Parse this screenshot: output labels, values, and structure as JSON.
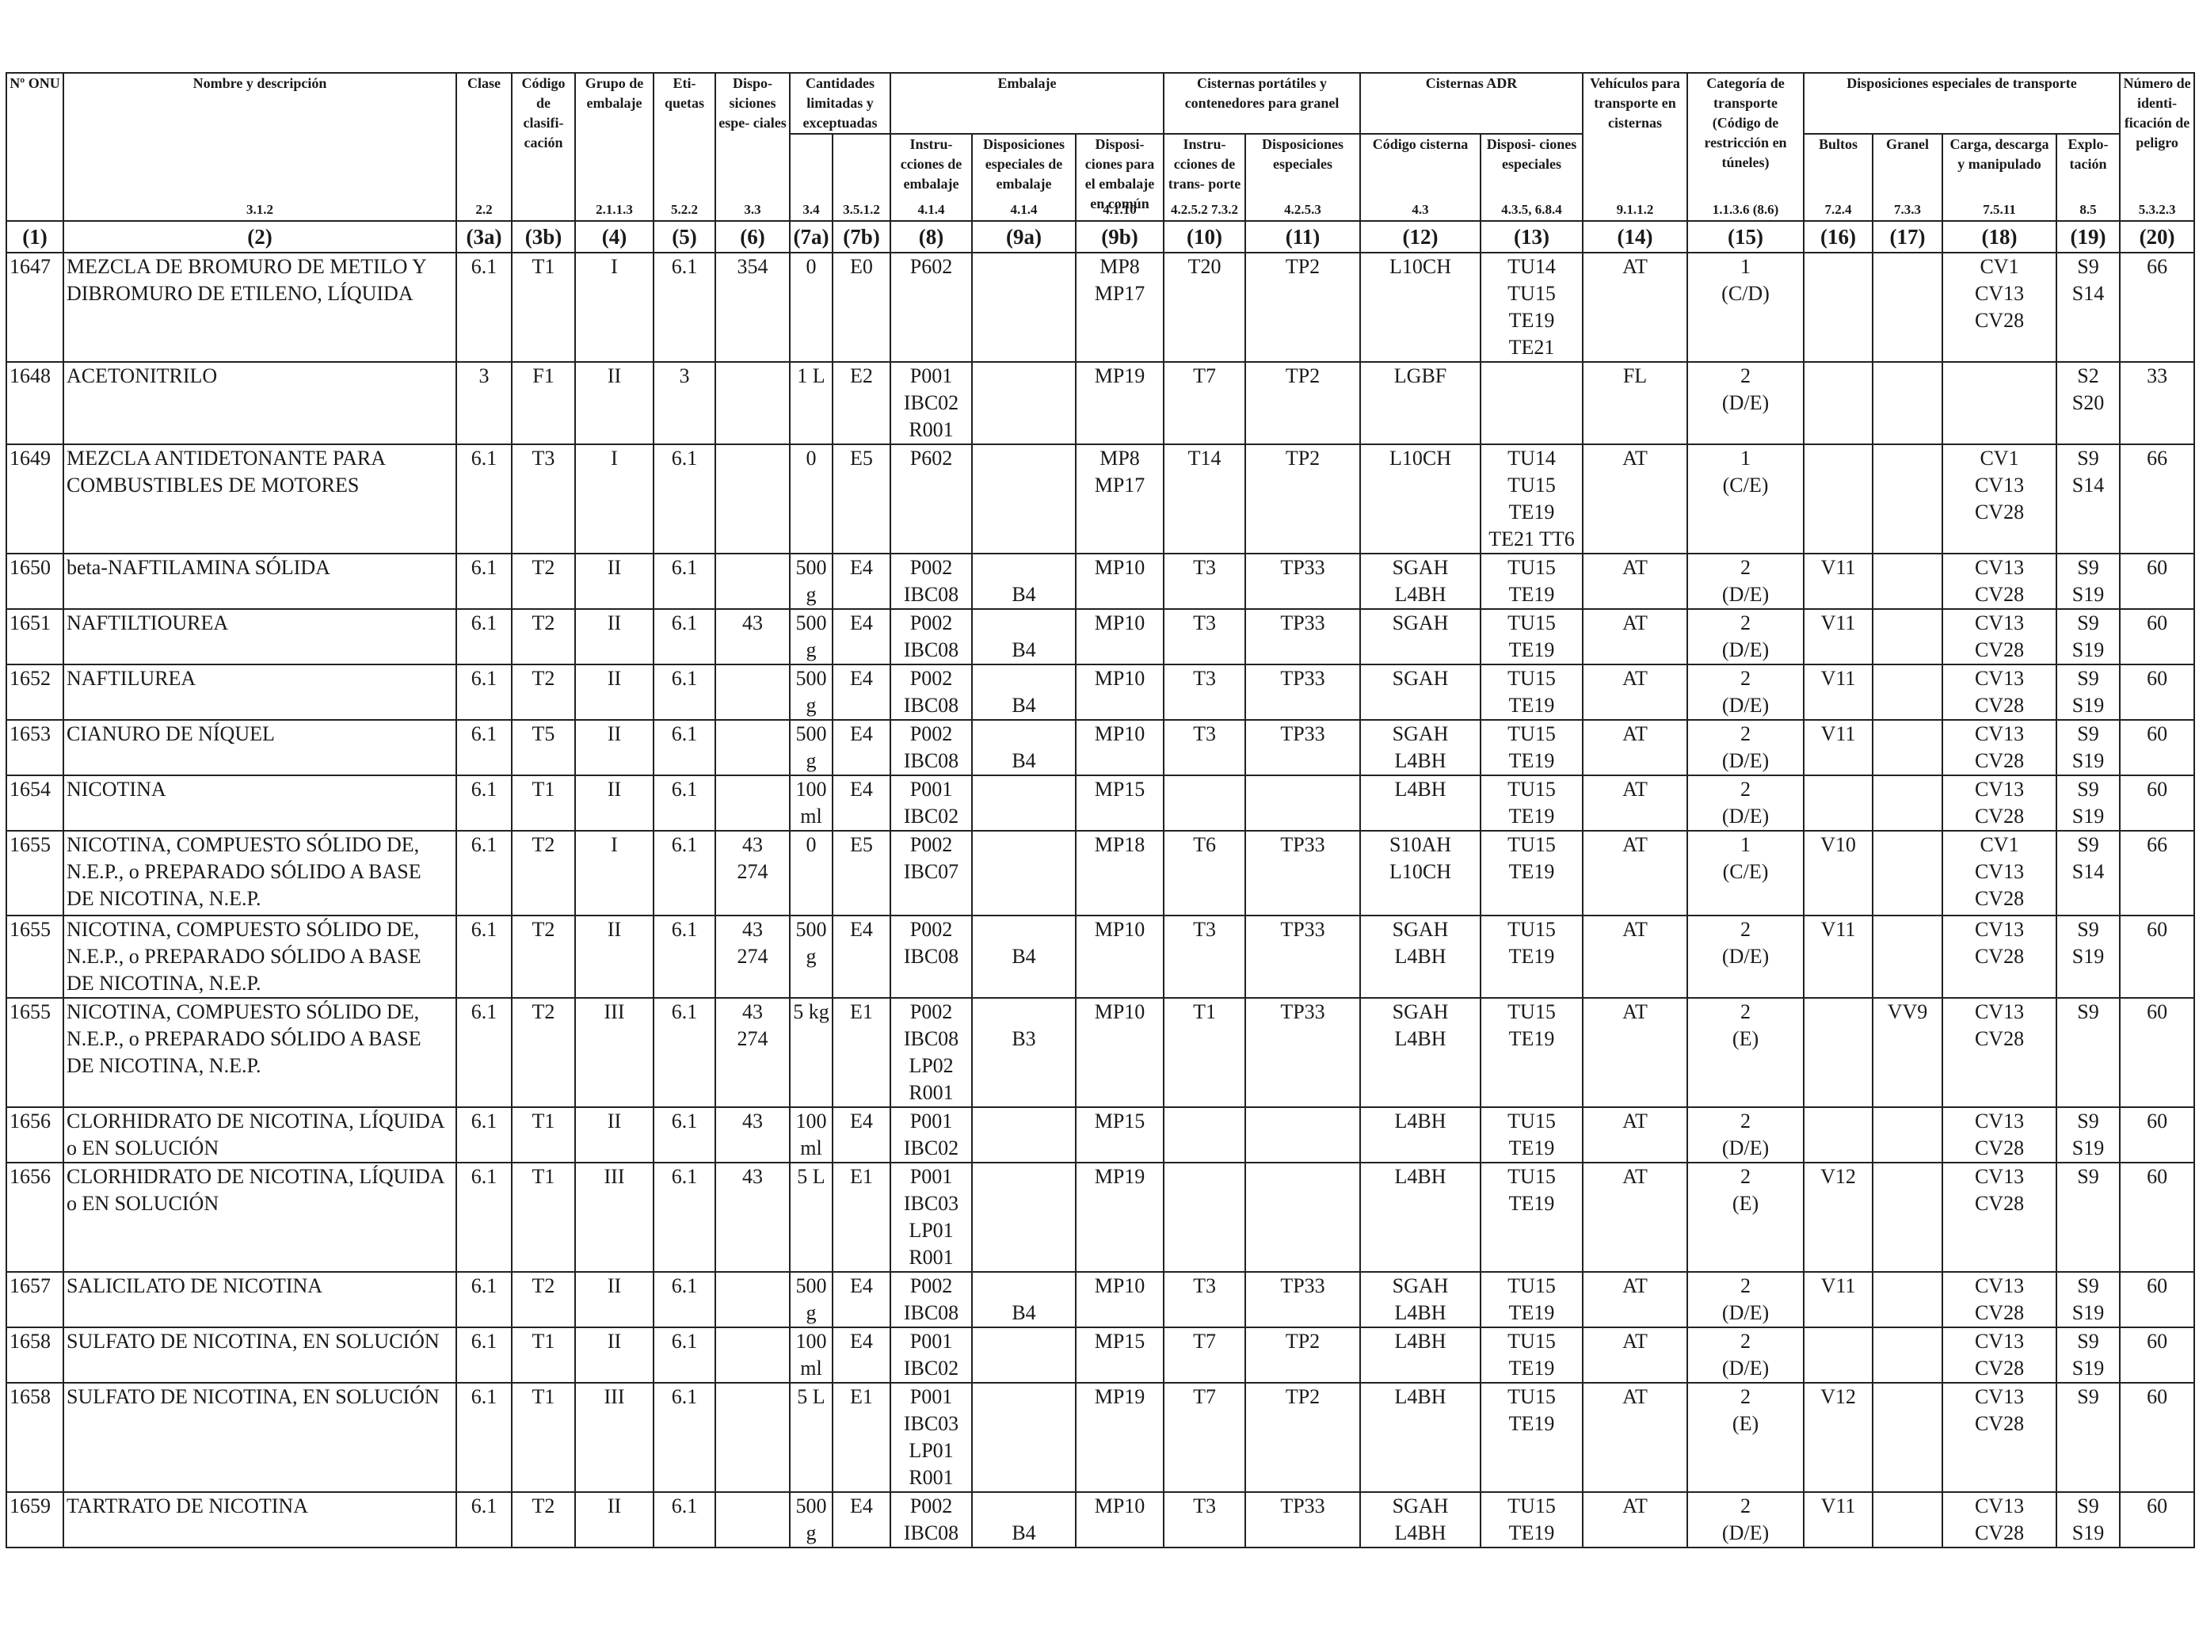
{
  "header": {
    "onu": "Nº ONU",
    "name": "Nombre y descripción",
    "name_ref": "3.1.2",
    "clase": "Clase",
    "clase_ref": "2.2",
    "codigo": "Código de clasifi- cación",
    "grupo": "Grupo de embalaje",
    "grupo_ref": "2.1.1.3",
    "etiquetas": "Eti- quetas",
    "etiquetas_ref": "5.2.2",
    "disposiciones": "Dispo- siciones espe- ciales",
    "disposiciones_ref": "3.3",
    "cantidades": "Cantidades limitadas y exceptuadas",
    "cantidades_ref_a": "3.4",
    "cantidades_ref_b": "3.5.1.2",
    "embalaje": "Embalaje",
    "emb_instr": "Instru- cciones de embalaje",
    "emb_instr_ref": "4.1.4",
    "emb_disp": "Disposiciones especiales de embalaje",
    "emb_disp_ref": "4.1.4",
    "emb_comun": "Disposi- ciones para el embalaje en común",
    "emb_comun_ref": "4.1.10",
    "cisternas_port": "Cisternas portátiles y contenedores para granel",
    "cp_instr": "Instru- cciones de trans- porte",
    "cp_instr_ref": "4.2.5.2 7.3.2",
    "cp_disp": "Disposiciones especiales",
    "cp_disp_ref": "4.2.5.3",
    "cisternas_adr": "Cisternas ADR",
    "adr_codigo": "Código cisterna",
    "adr_codigo_ref": "4.3",
    "adr_disp": "Disposi- ciones especiales",
    "adr_disp_ref": "4.3.5, 6.8.4",
    "vehiculos": "Vehículos para transporte en cisternas",
    "vehiculos_ref": "9.1.1.2",
    "categoria": "Categoría de transporte (Código de restricción en túneles)",
    "categoria_ref": "1.1.3.6 (8.6)",
    "dispesp": "Disposiciones especiales de transporte",
    "bultos": "Bultos",
    "bultos_ref": "7.2.4",
    "granel": "Granel",
    "granel_ref": "7.3.3",
    "carga": "Carga, descarga y manipulado",
    "carga_ref": "7.5.11",
    "explotacion": "Explo- tación",
    "explotacion_ref": "8.5",
    "numero": "Número de identi- ficación de peligro",
    "numero_ref": "5.3.2.3",
    "col_numbers": [
      "(1)",
      "(2)",
      "(3a)",
      "(3b)",
      "(4)",
      "(5)",
      "(6)",
      "(7a)",
      "(7b)",
      "(8)",
      "(9a)",
      "(9b)",
      "(10)",
      "(11)",
      "(12)",
      "(13)",
      "(14)",
      "(15)",
      "(16)",
      "(17)",
      "(18)",
      "(19)",
      "(20)"
    ]
  },
  "rows": [
    {
      "onu": "1647",
      "name": "MEZCLA DE BROMURO DE METILO Y DIBROMURO DE ETILENO, LÍQUIDA",
      "clase": "6.1",
      "codigo": "T1",
      "grupo": "I",
      "etiq": "6.1",
      "disp": "354",
      "c7a": "0",
      "c7b": "E0",
      "emb8": "P602",
      "emb9a": "",
      "emb9b": "MP8\nMP17",
      "c10": "T20",
      "c11": "TP2",
      "c12": "L10CH",
      "c13": "TU14\nTU15\nTE19\nTE21",
      "c14": "AT",
      "c15": "1\n(C/D)",
      "c16": "",
      "c17": "",
      "c18": "CV1\nCV13\nCV28",
      "c19": "S9\nS14",
      "c20": "66"
    },
    {
      "onu": "1648",
      "name": "ACETONITRILO",
      "clase": "3",
      "codigo": "F1",
      "grupo": "II",
      "etiq": "3",
      "disp": "",
      "c7a": "1 L",
      "c7b": "E2",
      "emb8": "P001\nIBC02\nR001",
      "emb9a": "",
      "emb9b": "MP19",
      "c10": "T7",
      "c11": "TP2",
      "c12": "LGBF",
      "c13": "",
      "c14": "FL",
      "c15": "2\n(D/E)",
      "c16": "",
      "c17": "",
      "c18": "",
      "c19": "S2\nS20",
      "c20": "33"
    },
    {
      "onu": "1649",
      "name": "MEZCLA ANTIDETONANTE PARA COMBUSTIBLES DE MOTORES",
      "clase": "6.1",
      "codigo": "T3",
      "grupo": "I",
      "etiq": "6.1",
      "disp": "",
      "c7a": "0",
      "c7b": "E5",
      "emb8": "P602",
      "emb9a": "",
      "emb9b": "MP8\nMP17",
      "c10": "T14",
      "c11": "TP2",
      "c12": "L10CH",
      "c13": "TU14\nTU15\nTE19\nTE21 TT6",
      "c14": "AT",
      "c15": "1\n(C/E)",
      "c16": "",
      "c17": "",
      "c18": "CV1\nCV13\nCV28",
      "c19": "S9\nS14",
      "c20": "66"
    },
    {
      "onu": "1650",
      "name": "beta-NAFTILAMINA SÓLIDA",
      "clase": "6.1",
      "codigo": "T2",
      "grupo": "II",
      "etiq": "6.1",
      "disp": "",
      "c7a": "500\ng",
      "c7b": "E4",
      "emb8": "P002\nIBC08",
      "emb9a": "\nB4",
      "emb9b": "MP10",
      "c10": "T3",
      "c11": "TP33",
      "c12": "SGAH\nL4BH",
      "c13": "TU15\nTE19",
      "c14": "AT",
      "c15": "2\n(D/E)",
      "c16": "V11",
      "c17": "",
      "c18": "CV13\nCV28",
      "c19": "S9\nS19",
      "c20": "60"
    },
    {
      "onu": "1651",
      "name": "NAFTILTIOUREA",
      "clase": "6.1",
      "codigo": "T2",
      "grupo": "II",
      "etiq": "6.1",
      "disp": "43",
      "c7a": "500\ng",
      "c7b": "E4",
      "emb8": "P002\nIBC08",
      "emb9a": "\nB4",
      "emb9b": "MP10",
      "c10": "T3",
      "c11": "TP33",
      "c12": "SGAH",
      "c13": "TU15\nTE19",
      "c14": "AT",
      "c15": "2\n(D/E)",
      "c16": "V11",
      "c17": "",
      "c18": "CV13\nCV28",
      "c19": "S9\nS19",
      "c20": "60"
    },
    {
      "onu": "1652",
      "name": "NAFTILUREA",
      "clase": "6.1",
      "codigo": "T2",
      "grupo": "II",
      "etiq": "6.1",
      "disp": "",
      "c7a": "500\ng",
      "c7b": "E4",
      "emb8": "P002\nIBC08",
      "emb9a": "\nB4",
      "emb9b": "MP10",
      "c10": "T3",
      "c11": "TP33",
      "c12": "SGAH",
      "c13": "TU15\nTE19",
      "c14": "AT",
      "c15": "2\n(D/E)",
      "c16": "V11",
      "c17": "",
      "c18": "CV13\nCV28",
      "c19": "S9\nS19",
      "c20": "60"
    },
    {
      "onu": "1653",
      "name": "CIANURO DE NÍQUEL",
      "clase": "6.1",
      "codigo": "T5",
      "grupo": "II",
      "etiq": "6.1",
      "disp": "",
      "c7a": "500\ng",
      "c7b": "E4",
      "emb8": "P002\nIBC08",
      "emb9a": "\nB4",
      "emb9b": "MP10",
      "c10": "T3",
      "c11": "TP33",
      "c12": "SGAH\nL4BH",
      "c13": "TU15\nTE19",
      "c14": "AT",
      "c15": "2\n(D/E)",
      "c16": "V11",
      "c17": "",
      "c18": "CV13\nCV28",
      "c19": "S9\nS19",
      "c20": "60"
    },
    {
      "onu": "1654",
      "name": "NICOTINA",
      "clase": "6.1",
      "codigo": "T1",
      "grupo": "II",
      "etiq": "6.1",
      "disp": "",
      "c7a": "100\nml",
      "c7b": "E4",
      "emb8": "P001\nIBC02",
      "emb9a": "",
      "emb9b": "MP15",
      "c10": "",
      "c11": "",
      "c12": "L4BH",
      "c13": "TU15\nTE19",
      "c14": "AT",
      "c15": "2\n(D/E)",
      "c16": "",
      "c17": "",
      "c18": "CV13\nCV28",
      "c19": "S9\nS19",
      "c20": "60"
    },
    {
      "onu": "1655",
      "name": "NICOTINA, COMPUESTO SÓLIDO DE, N.E.P., o PREPARADO SÓLIDO A BASE DE NICOTINA, N.E.P.",
      "clase": "6.1",
      "codigo": "T2",
      "grupo": "I",
      "etiq": "6.1",
      "disp": "43\n274",
      "c7a": "0",
      "c7b": "E5",
      "emb8": "P002\nIBC07",
      "emb9a": "",
      "emb9b": "MP18",
      "c10": "T6",
      "c11": "TP33",
      "c12": "S10AH\nL10CH",
      "c13": "TU15\nTE19",
      "c14": "AT",
      "c15": "1\n(C/E)",
      "c16": "V10",
      "c17": "",
      "c18": "CV1\nCV13\nCV28",
      "c19": "S9\nS14",
      "c20": "66"
    },
    {
      "onu": "1655",
      "name": "NICOTINA, COMPUESTO SÓLIDO DE, N.E.P., o PREPARADO SÓLIDO A BASE DE NICOTINA, N.E.P.",
      "clase": "6.1",
      "codigo": "T2",
      "grupo": "II",
      "etiq": "6.1",
      "disp": "43\n274",
      "c7a": "500\ng",
      "c7b": "E4",
      "emb8": "P002\nIBC08",
      "emb9a": "\nB4",
      "emb9b": "MP10",
      "c10": "T3",
      "c11": "TP33",
      "c12": "SGAH\nL4BH",
      "c13": "TU15\nTE19",
      "c14": "AT",
      "c15": "2\n(D/E)",
      "c16": "V11",
      "c17": "",
      "c18": "CV13\nCV28",
      "c19": "S9\nS19",
      "c20": "60"
    },
    {
      "onu": "1655",
      "name": "NICOTINA, COMPUESTO SÓLIDO DE, N.E.P., o PREPARADO SÓLIDO A BASE DE NICOTINA, N.E.P.",
      "clase": "6.1",
      "codigo": "T2",
      "grupo": "III",
      "etiq": "6.1",
      "disp": "43\n274",
      "c7a": "5 kg",
      "c7b": "E1",
      "emb8": "P002\nIBC08\nLP02\nR001",
      "emb9a": "\nB3",
      "emb9b": "MP10",
      "c10": "T1",
      "c11": "TP33",
      "c12": "SGAH\nL4BH",
      "c13": "TU15\nTE19",
      "c14": "AT",
      "c15": "2\n(E)",
      "c16": "",
      "c17": "VV9",
      "c18": "CV13\nCV28",
      "c19": "S9",
      "c20": "60"
    },
    {
      "onu": "1656",
      "name": "CLORHIDRATO DE NICOTINA, LÍQUIDA o EN SOLUCIÓN",
      "clase": "6.1",
      "codigo": "T1",
      "grupo": "II",
      "etiq": "6.1",
      "disp": "43",
      "c7a": "100\nml",
      "c7b": "E4",
      "emb8": "P001\nIBC02",
      "emb9a": "",
      "emb9b": "MP15",
      "c10": "",
      "c11": "",
      "c12": "L4BH",
      "c13": "TU15\nTE19",
      "c14": "AT",
      "c15": "2\n(D/E)",
      "c16": "",
      "c17": "",
      "c18": "CV13\nCV28",
      "c19": "S9\nS19",
      "c20": "60"
    },
    {
      "onu": "1656",
      "name": "CLORHIDRATO DE NICOTINA, LÍQUIDA o EN SOLUCIÓN",
      "clase": "6.1",
      "codigo": "T1",
      "grupo": "III",
      "etiq": "6.1",
      "disp": "43",
      "c7a": "5 L",
      "c7b": "E1",
      "emb8": "P001\nIBC03\nLP01\nR001",
      "emb9a": "",
      "emb9b": "MP19",
      "c10": "",
      "c11": "",
      "c12": "L4BH",
      "c13": "TU15\nTE19",
      "c14": "AT",
      "c15": "2\n(E)",
      "c16": "V12",
      "c17": "",
      "c18": "CV13\nCV28",
      "c19": "S9",
      "c20": "60"
    },
    {
      "onu": "1657",
      "name": "SALICILATO DE NICOTINA",
      "clase": "6.1",
      "codigo": "T2",
      "grupo": "II",
      "etiq": "6.1",
      "disp": "",
      "c7a": "500\ng",
      "c7b": "E4",
      "emb8": "P002\nIBC08",
      "emb9a": "\nB4",
      "emb9b": "MP10",
      "c10": "T3",
      "c11": "TP33",
      "c12": "SGAH\nL4BH",
      "c13": "TU15\nTE19",
      "c14": "AT",
      "c15": "2\n(D/E)",
      "c16": "V11",
      "c17": "",
      "c18": "CV13\nCV28",
      "c19": "S9\nS19",
      "c20": "60"
    },
    {
      "onu": "1658",
      "name": "SULFATO DE NICOTINA, EN SOLUCIÓN",
      "clase": "6.1",
      "codigo": "T1",
      "grupo": "II",
      "etiq": "6.1",
      "disp": "",
      "c7a": "100\nml",
      "c7b": "E4",
      "emb8": "P001\nIBC02",
      "emb9a": "",
      "emb9b": "MP15",
      "c10": "T7",
      "c11": "TP2",
      "c12": "L4BH",
      "c13": "TU15\nTE19",
      "c14": "AT",
      "c15": "2\n(D/E)",
      "c16": "",
      "c17": "",
      "c18": "CV13\nCV28",
      "c19": "S9\nS19",
      "c20": "60"
    },
    {
      "onu": "1658",
      "name": "SULFATO DE NICOTINA, EN SOLUCIÓN",
      "clase": "6.1",
      "codigo": "T1",
      "grupo": "III",
      "etiq": "6.1",
      "disp": "",
      "c7a": "5 L",
      "c7b": "E1",
      "emb8": "P001\nIBC03\nLP01\nR001",
      "emb9a": "",
      "emb9b": "MP19",
      "c10": "T7",
      "c11": "TP2",
      "c12": "L4BH",
      "c13": "TU15\nTE19",
      "c14": "AT",
      "c15": "2\n(E)",
      "c16": "V12",
      "c17": "",
      "c18": "CV13\nCV28",
      "c19": "S9",
      "c20": "60"
    },
    {
      "onu": "1659",
      "name": "TARTRATO DE NICOTINA",
      "clase": "6.1",
      "codigo": "T2",
      "grupo": "II",
      "etiq": "6.1",
      "disp": "",
      "c7a": "500\ng",
      "c7b": "E4",
      "emb8": "P002\nIBC08",
      "emb9a": "\nB4",
      "emb9b": "MP10",
      "c10": "T3",
      "c11": "TP33",
      "c12": "SGAH\nL4BH",
      "c13": "TU15\nTE19",
      "c14": "AT",
      "c15": "2\n(D/E)",
      "c16": "V11",
      "c17": "",
      "c18": "CV13\nCV28",
      "c19": "S9\nS19",
      "c20": "60"
    }
  ]
}
